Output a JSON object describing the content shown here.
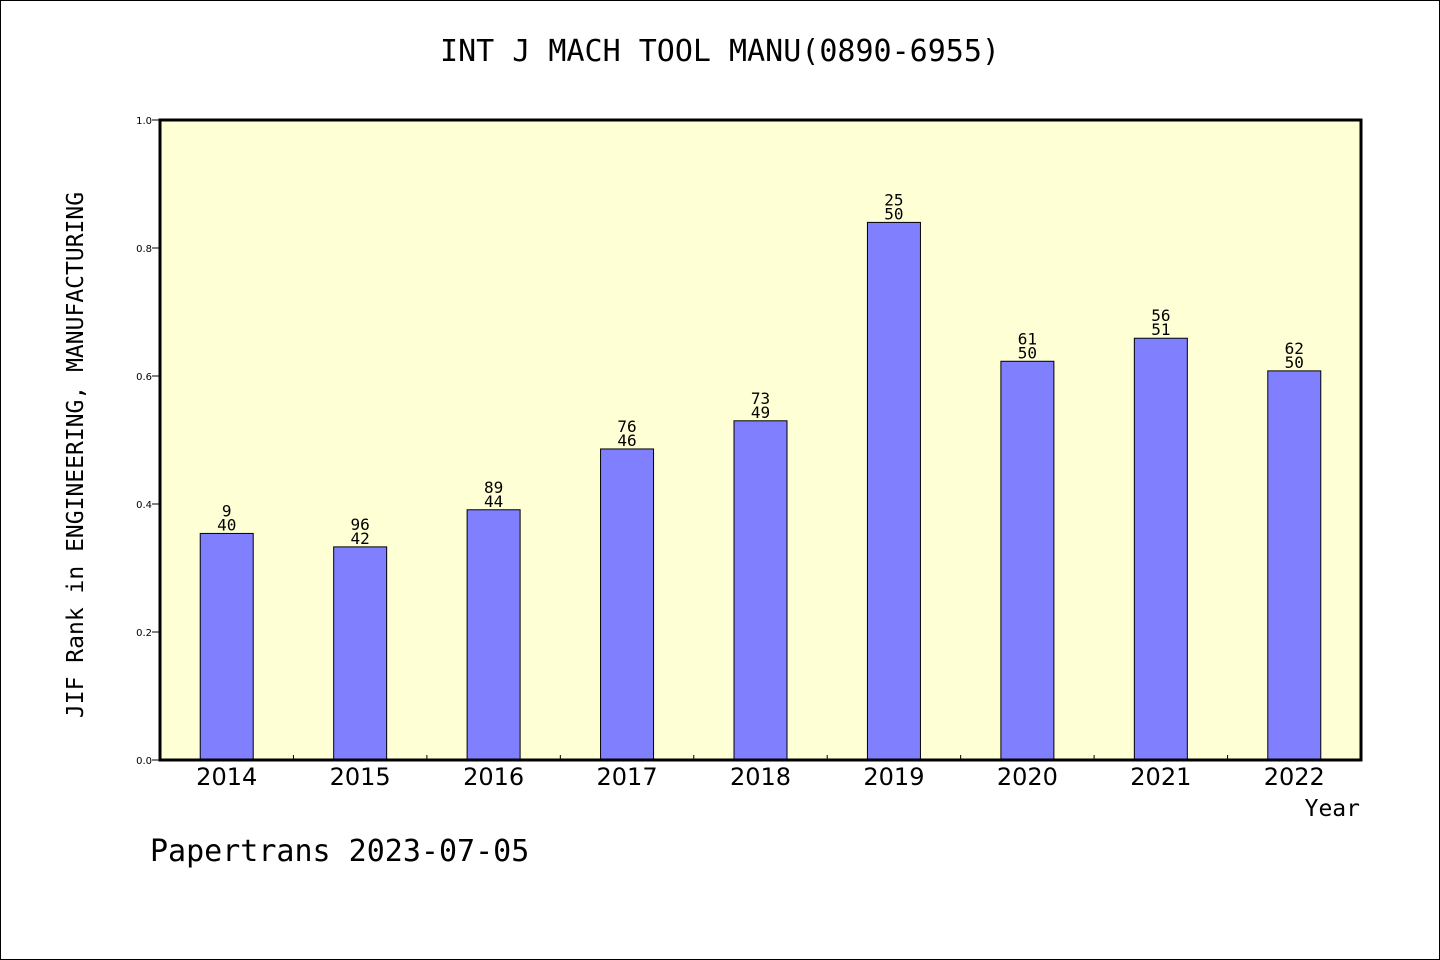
{
  "chart_data": {
    "type": "bar",
    "title": "INT J MACH TOOL MANU(0890-6955)",
    "xlabel": "Year",
    "ylabel": "JIF Rank in ENGINEERING, MANUFACTURING",
    "ylim": [
      0,
      1.0
    ],
    "yticks": [
      "0.0",
      "0.2",
      "0.4",
      "0.6",
      "0.8",
      "1.0"
    ],
    "categories": [
      "2014",
      "2015",
      "2016",
      "2017",
      "2018",
      "2019",
      "2020",
      "2021",
      "2022"
    ],
    "values": [
      0.354,
      0.333,
      0.391,
      0.486,
      0.53,
      0.84,
      0.623,
      0.659,
      0.608
    ],
    "labels_top": [
      "9",
      "96",
      "89",
      "76",
      "73",
      "25",
      "61",
      "56",
      "62"
    ],
    "labels_bottom": [
      "40",
      "42",
      "44",
      "46",
      "49",
      "50",
      "50",
      "51",
      "50"
    ],
    "colors": {
      "plot_bg": "#ffffd5",
      "bar": "#8080ff"
    },
    "grid": false
  },
  "footer": "Papertrans 2023-07-05"
}
